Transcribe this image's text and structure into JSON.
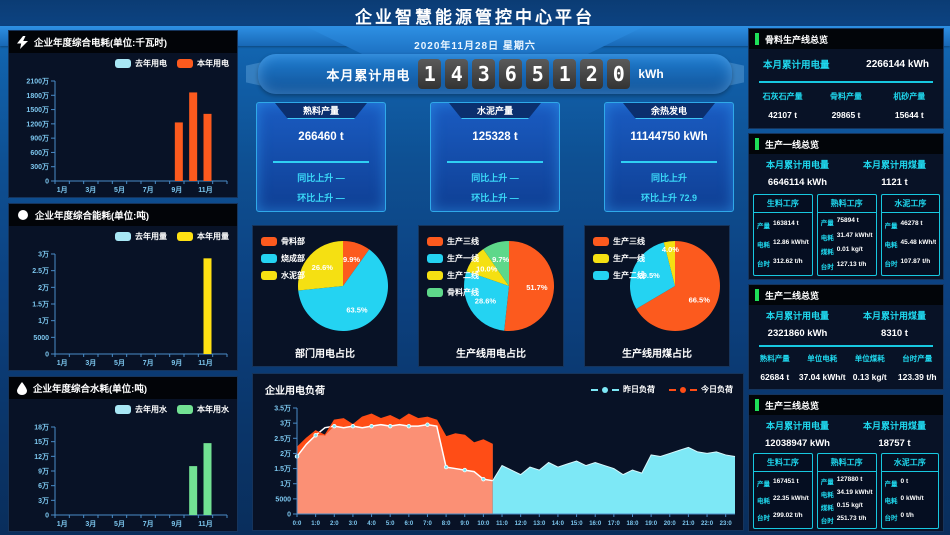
{
  "header": {
    "title": "企业智慧能源管控中心平台",
    "date": "2020年11月28日 星期六"
  },
  "kpi": {
    "label": "本月累计用电",
    "digits": [
      "1",
      "4",
      "3",
      "6",
      "5",
      "1",
      "2",
      "0"
    ],
    "unit": "kWh"
  },
  "stat_cards": [
    {
      "title": "熟料产量",
      "value": "266460 t",
      "rows": [
        "同比上升 —",
        "环比上升 —"
      ]
    },
    {
      "title": "水泥产量",
      "value": "125328 t",
      "rows": [
        "同比上升 —",
        "环比上升 —"
      ]
    },
    {
      "title": "余热发电",
      "value": "11144750 kWh",
      "rows": [
        "同比上升",
        "环比上升 72.9"
      ]
    }
  ],
  "colors": {
    "accent_cyan": "#1fd8ee",
    "accent_green": "#1ee058",
    "axis_blue": "#7cc6ee"
  },
  "chart_data": [
    {
      "type": "bar",
      "title": "企业年度综合电耗(单位:千瓦时)",
      "value_unit": "万",
      "categories": [
        "1月",
        "2月",
        "3月",
        "4月",
        "5月",
        "6月",
        "7月",
        "8月",
        "9月",
        "10月",
        "11月",
        "12月"
      ],
      "yticks": [
        "0",
        "300万",
        "600万",
        "900万",
        "1200万",
        "1500万",
        "1800万",
        "2100万"
      ],
      "ymax": 2100,
      "series": [
        {
          "name": "去年用电",
          "color": "#a8e7f5",
          "values": [
            0,
            0,
            0,
            0,
            0,
            0,
            0,
            0,
            0,
            0,
            0,
            0
          ]
        },
        {
          "name": "本年用电",
          "color": "#fc5a1e",
          "values": [
            0,
            0,
            0,
            0,
            0,
            0,
            0,
            0,
            1230,
            1860,
            1410,
            0
          ]
        }
      ]
    },
    {
      "type": "bar",
      "title": "企业年度综合能耗(单位:吨)",
      "value_unit": "万",
      "categories": [
        "1月",
        "2月",
        "3月",
        "4月",
        "5月",
        "6月",
        "7月",
        "8月",
        "9月",
        "10月",
        "11月",
        "12月"
      ],
      "yticks": [
        "0",
        "5000",
        "1万",
        "1.5万",
        "2万",
        "2.5万",
        "3万"
      ],
      "ymax": 3,
      "series": [
        {
          "name": "去年用量",
          "color": "#a8e7f5",
          "values": [
            0,
            0,
            0,
            0,
            0,
            0,
            0,
            0,
            0,
            0,
            0,
            0
          ]
        },
        {
          "name": "本年用量",
          "color": "#ffe113",
          "values": [
            0,
            0,
            0,
            0,
            0,
            0,
            0,
            0,
            0,
            0,
            2.87,
            0
          ]
        }
      ]
    },
    {
      "type": "bar",
      "title": "企业年度综合水耗(单位:吨)",
      "value_unit": "万",
      "categories": [
        "1月",
        "2月",
        "3月",
        "4月",
        "5月",
        "6月",
        "7月",
        "8月",
        "9月",
        "10月",
        "11月",
        "12月"
      ],
      "yticks": [
        "0",
        "3万",
        "6万",
        "9万",
        "12万",
        "15万",
        "18万"
      ],
      "ymax": 18,
      "series": [
        {
          "name": "去年用水",
          "color": "#a8e7f5",
          "values": [
            0,
            0,
            0,
            0,
            0,
            0,
            0,
            0,
            0,
            0,
            0,
            0
          ]
        },
        {
          "name": "本年用水",
          "color": "#72e193",
          "values": [
            0,
            0,
            0,
            0,
            0,
            0,
            0,
            0,
            0,
            10,
            14.7,
            0
          ]
        }
      ]
    },
    {
      "type": "pie",
      "title": "部门用电占比",
      "slices": [
        {
          "name": "骨料部",
          "value": 9.9,
          "color": "#fc5a1e"
        },
        {
          "name": "烧成部",
          "value": 63.5,
          "color": "#24d3f2"
        },
        {
          "name": "水泥部",
          "value": 26.6,
          "color": "#f5e012"
        }
      ]
    },
    {
      "type": "pie",
      "title": "生产线用电占比",
      "slices": [
        {
          "name": "生产三线",
          "value": 51.7,
          "color": "#fc5a1e"
        },
        {
          "name": "生产一线",
          "value": 28.6,
          "color": "#24d3f2"
        },
        {
          "name": "生产二线",
          "value": 10.0,
          "color": "#f5e012"
        },
        {
          "name": "骨料产线",
          "value": 9.7,
          "color": "#5ed88a"
        }
      ]
    },
    {
      "type": "pie",
      "title": "生产线用煤占比",
      "slices": [
        {
          "name": "生产三线",
          "value": 66.5,
          "color": "#fc5a1e"
        },
        {
          "name": "生产二线",
          "value": 29.5,
          "color": "#24d3f2"
        },
        {
          "name": "生产一线",
          "value": 4.0,
          "color": "#f5e012"
        }
      ]
    },
    {
      "type": "area",
      "title": "企业用电负荷",
      "value_unit": "万",
      "step_hours": 0.5,
      "x_labels": [
        "0:0",
        "1:0",
        "2:0",
        "3:0",
        "4:0",
        "5:0",
        "6:0",
        "7:0",
        "8:0",
        "9:0",
        "10:0",
        "11:0",
        "12:0",
        "13:0",
        "14:0",
        "15:0",
        "16:0",
        "17:0",
        "18:0",
        "19:0",
        "20:0",
        "21:0",
        "22:0",
        "23:0"
      ],
      "yticks": [
        "0",
        "5000",
        "1万",
        "1.5万",
        "2万",
        "2.5万",
        "3万",
        "3.5万"
      ],
      "ymax_wan": 3.5,
      "series": [
        {
          "name": "昨日负荷",
          "color": "#7de8f6",
          "line_color": "#ffffff",
          "values_wan": [
            1.9,
            2.3,
            2.6,
            2.85,
            2.9,
            2.85,
            2.9,
            2.85,
            2.9,
            2.95,
            2.9,
            2.95,
            2.9,
            2.9,
            2.95,
            2.9,
            1.55,
            1.5,
            1.45,
            1.4,
            1.15,
            1.1,
            1.6,
            1.45,
            1.3,
            1.55,
            1.45,
            1.7,
            1.55,
            1.65,
            1.75,
            1.6,
            1.7,
            1.6,
            1.5,
            1.3,
            1.45,
            1.35,
            1.95,
            1.9,
            2.0,
            2.1,
            2.2,
            2.05,
            2.0,
            2.05,
            1.95,
            1.9
          ]
        },
        {
          "name": "今日负荷",
          "color": "#ff4d16",
          "area_color": "#fb9075",
          "values_wan": [
            2.2,
            2.5,
            2.75,
            2.6,
            3.1,
            3.15,
            2.95,
            3.2,
            3.3,
            3.15,
            3.25,
            3.1,
            3.3,
            3.15,
            3.2,
            3.1,
            2.55,
            2.65,
            2.6,
            2.35,
            2.45,
            2.3
          ]
        }
      ]
    }
  ],
  "right_panels": [
    {
      "title": "骨料生产线总览",
      "totals": [
        {
          "label": "本月累计用电量",
          "value": "2266144 kWh"
        }
      ],
      "columns": [
        {
          "label": "石灰石产量",
          "value": "42107 t"
        },
        {
          "label": "骨料产量",
          "value": "29865 t"
        },
        {
          "label": "机砂产量",
          "value": "15644 t"
        }
      ]
    },
    {
      "title": "生产一线总览",
      "totals": [
        {
          "label": "本月累计用电量",
          "value": "6646114 kWh"
        },
        {
          "label": "本月累计用煤量",
          "value": "1121 t"
        }
      ],
      "cards": [
        {
          "title": "生料工序",
          "rows": [
            {
              "label": "产量",
              "value": "163814 t"
            },
            {
              "label": "电耗",
              "value": "12.86 kWh/t"
            },
            {
              "label": "台时",
              "value": "312.62 t/h"
            }
          ]
        },
        {
          "title": "熟料工序",
          "rows": [
            {
              "label": "产量",
              "value": "75894 t"
            },
            {
              "label": "电耗",
              "value": "31.47 kWh/t"
            },
            {
              "label": "煤耗",
              "value": "0.01 kg/t"
            },
            {
              "label": "台时",
              "value": "127.13 t/h"
            }
          ]
        },
        {
          "title": "水泥工序",
          "rows": [
            {
              "label": "产量",
              "value": "46278 t"
            },
            {
              "label": "电耗",
              "value": "45.48 kWh/t"
            },
            {
              "label": "台时",
              "value": "107.87 t/h"
            }
          ]
        }
      ]
    },
    {
      "title": "生产二线总览",
      "totals": [
        {
          "label": "本月累计用电量",
          "value": "2321860 kWh"
        },
        {
          "label": "本月累计用煤量",
          "value": "8310 t"
        }
      ],
      "columns": [
        {
          "label": "熟料产量",
          "value": "62684 t"
        },
        {
          "label": "单位电耗",
          "value": "37.04 kWh/t"
        },
        {
          "label": "单位煤耗",
          "value": "0.13 kg/t"
        },
        {
          "label": "台时产量",
          "value": "123.39 t/h"
        }
      ]
    },
    {
      "title": "生产三线总览",
      "totals": [
        {
          "label": "本月累计用电量",
          "value": "12038947 kWh"
        },
        {
          "label": "本月累计用煤量",
          "value": "18757 t"
        }
      ],
      "cards": [
        {
          "title": "生料工序",
          "rows": [
            {
              "label": "产量",
              "value": "167451 t"
            },
            {
              "label": "电耗",
              "value": "22.35 kWh/t"
            },
            {
              "label": "台时",
              "value": "299.02 t/h"
            }
          ]
        },
        {
          "title": "熟料工序",
          "rows": [
            {
              "label": "产量",
              "value": "127880 t"
            },
            {
              "label": "电耗",
              "value": "34.19 kWh/t"
            },
            {
              "label": "煤耗",
              "value": "0.15 kg/t"
            },
            {
              "label": "台时",
              "value": "251.73 t/h"
            }
          ]
        },
        {
          "title": "水泥工序",
          "rows": [
            {
              "label": "产量",
              "value": "0 t"
            },
            {
              "label": "电耗",
              "value": "0 kWh/t"
            },
            {
              "label": "台时",
              "value": "0 t/h"
            }
          ]
        }
      ]
    }
  ]
}
